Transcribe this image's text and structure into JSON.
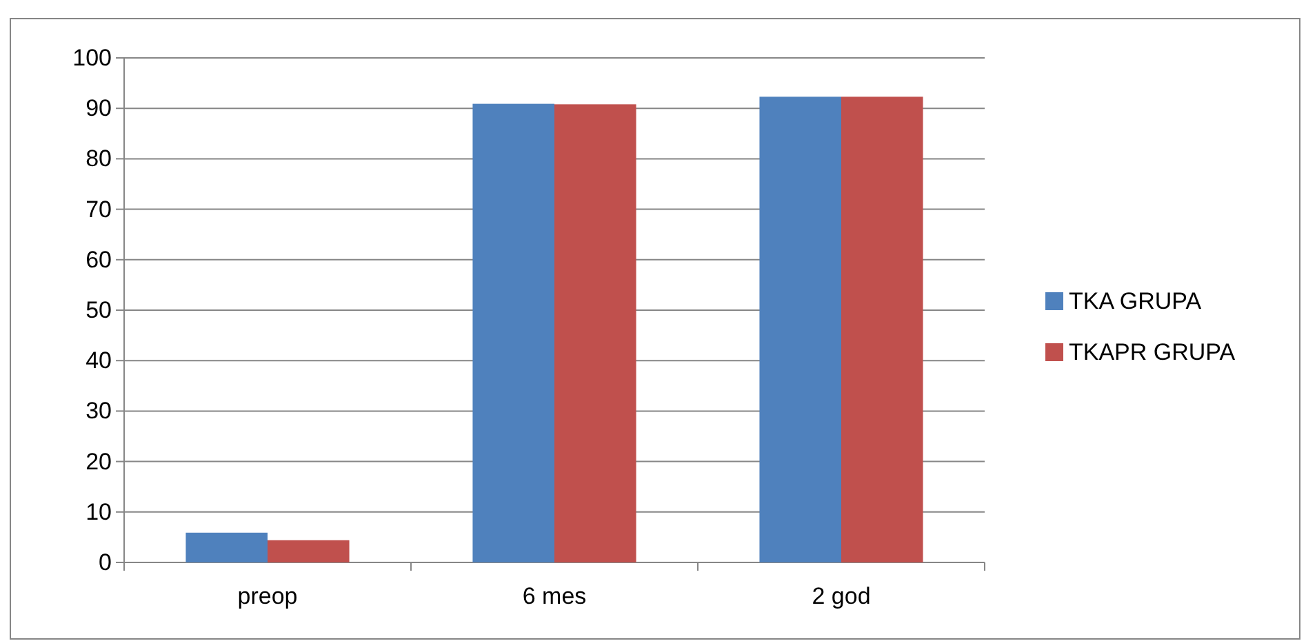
{
  "chart_data": {
    "type": "bar",
    "categories": [
      "preop",
      "6 mes",
      "2 god"
    ],
    "series": [
      {
        "name": "TKA GRUPA",
        "color": "#4f81bd",
        "values": [
          5.9,
          90.9,
          92.3
        ]
      },
      {
        "name": "TKAPR GRUPA",
        "color": "#c0504d",
        "values": [
          4.4,
          90.8,
          92.3
        ]
      }
    ],
    "ylim": [
      0,
      100
    ],
    "yticks": [
      0,
      10,
      20,
      30,
      40,
      50,
      60,
      70,
      80,
      90,
      100
    ],
    "grid": "y",
    "legend": "right"
  }
}
